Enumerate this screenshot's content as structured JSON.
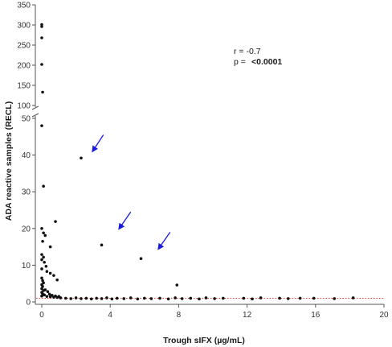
{
  "chart_data": {
    "type": "scatter",
    "xlabel": "Trough sIFX (µg/mL)",
    "ylabel": "ADA reactive samples  (RECL)",
    "xlim": [
      0,
      20
    ],
    "x_ticks": [
      0,
      4,
      8,
      12,
      16,
      20
    ],
    "y_axis_break": true,
    "y_lower_range": [
      0,
      50
    ],
    "y_lower_ticks": [
      0,
      10,
      20,
      30,
      40,
      50
    ],
    "y_upper_range": [
      100,
      350
    ],
    "y_upper_ticks": [
      100,
      150,
      200,
      250,
      300,
      350
    ],
    "annotation": {
      "r_label": "r = -0.7",
      "p_label": "p =",
      "p_value": "<0.0001"
    },
    "threshold": {
      "y": 1,
      "color": "#e8403a",
      "style": "dotted"
    },
    "arrow_color": "#1a1adc",
    "point_color": "#111111",
    "points": [
      {
        "x": 0.0,
        "y": 301
      },
      {
        "x": 0.0,
        "y": 296
      },
      {
        "x": 0.0,
        "y": 268
      },
      {
        "x": 0.0,
        "y": 202
      },
      {
        "x": 0.05,
        "y": 133
      },
      {
        "x": 0.0,
        "y": 48
      },
      {
        "x": 0.1,
        "y": 31.5
      },
      {
        "x": 2.3,
        "y": 39.2
      },
      {
        "x": 0.8,
        "y": 21.9
      },
      {
        "x": 3.5,
        "y": 15.5
      },
      {
        "x": 5.8,
        "y": 11.8
      },
      {
        "x": 7.9,
        "y": 4.6
      },
      {
        "x": 0.0,
        "y": 20
      },
      {
        "x": 0.1,
        "y": 18.8
      },
      {
        "x": 0.2,
        "y": 18.1
      },
      {
        "x": 0.05,
        "y": 16.5
      },
      {
        "x": 0.5,
        "y": 15.0
      },
      {
        "x": 0.0,
        "y": 12.9
      },
      {
        "x": 0.1,
        "y": 12.2
      },
      {
        "x": 0.0,
        "y": 11.5
      },
      {
        "x": 0.15,
        "y": 10.8
      },
      {
        "x": 0.25,
        "y": 9.7
      },
      {
        "x": 0.0,
        "y": 9.0
      },
      {
        "x": 0.3,
        "y": 8.3
      },
      {
        "x": 0.5,
        "y": 7.8
      },
      {
        "x": 0.7,
        "y": 7.2
      },
      {
        "x": 0.9,
        "y": 6.0
      },
      {
        "x": 0.0,
        "y": 6.5
      },
      {
        "x": 0.05,
        "y": 5.8
      },
      {
        "x": 0.1,
        "y": 5.2
      },
      {
        "x": 0.0,
        "y": 4.7
      },
      {
        "x": 0.05,
        "y": 4.2
      },
      {
        "x": 0.0,
        "y": 3.6
      },
      {
        "x": 0.1,
        "y": 3.1
      },
      {
        "x": 0.0,
        "y": 2.6
      },
      {
        "x": 0.05,
        "y": 2.2
      },
      {
        "x": 0.15,
        "y": 1.9
      },
      {
        "x": 0.0,
        "y": 1.6
      },
      {
        "x": 0.3,
        "y": 1.5
      },
      {
        "x": 0.5,
        "y": 1.4
      },
      {
        "x": 0.7,
        "y": 1.3
      },
      {
        "x": 0.9,
        "y": 1.2
      },
      {
        "x": 1.1,
        "y": 1.1
      },
      {
        "x": 1.4,
        "y": 1.0
      },
      {
        "x": 1.7,
        "y": 0.9
      },
      {
        "x": 2.0,
        "y": 1.1
      },
      {
        "x": 2.3,
        "y": 0.9
      },
      {
        "x": 2.6,
        "y": 1.0
      },
      {
        "x": 2.9,
        "y": 0.8
      },
      {
        "x": 3.2,
        "y": 1.0
      },
      {
        "x": 3.5,
        "y": 0.9
      },
      {
        "x": 3.8,
        "y": 1.1
      },
      {
        "x": 4.1,
        "y": 0.8
      },
      {
        "x": 4.4,
        "y": 1.0
      },
      {
        "x": 4.8,
        "y": 0.9
      },
      {
        "x": 5.2,
        "y": 1.1
      },
      {
        "x": 5.6,
        "y": 0.8
      },
      {
        "x": 6.0,
        "y": 1.0
      },
      {
        "x": 6.4,
        "y": 0.9
      },
      {
        "x": 6.9,
        "y": 1.0
      },
      {
        "x": 7.4,
        "y": 0.8
      },
      {
        "x": 7.8,
        "y": 1.1
      },
      {
        "x": 8.2,
        "y": 0.9
      },
      {
        "x": 8.7,
        "y": 1.0
      },
      {
        "x": 9.2,
        "y": 0.8
      },
      {
        "x": 9.6,
        "y": 1.1
      },
      {
        "x": 10.1,
        "y": 0.9
      },
      {
        "x": 10.6,
        "y": 1.0
      },
      {
        "x": 11.8,
        "y": 1.0
      },
      {
        "x": 12.3,
        "y": 0.8
      },
      {
        "x": 12.8,
        "y": 1.1
      },
      {
        "x": 13.9,
        "y": 1.0
      },
      {
        "x": 14.4,
        "y": 0.9
      },
      {
        "x": 15.1,
        "y": 1.0
      },
      {
        "x": 15.9,
        "y": 1.0
      },
      {
        "x": 17.1,
        "y": 0.9
      },
      {
        "x": 18.2,
        "y": 1.1
      },
      {
        "x": 0.2,
        "y": 3.3
      },
      {
        "x": 0.35,
        "y": 2.8
      },
      {
        "x": 0.45,
        "y": 2.1
      },
      {
        "x": 0.6,
        "y": 1.8
      },
      {
        "x": 0.8,
        "y": 1.6
      },
      {
        "x": 1.0,
        "y": 1.5
      }
    ],
    "arrows": [
      {
        "from": [
          3.6,
          45.5
        ],
        "to": [
          2.95,
          40.9
        ]
      },
      {
        "from": [
          5.2,
          24.5
        ],
        "to": [
          4.5,
          19.8
        ]
      },
      {
        "from": [
          7.5,
          19.0
        ],
        "to": [
          6.8,
          14.3
        ]
      }
    ]
  }
}
